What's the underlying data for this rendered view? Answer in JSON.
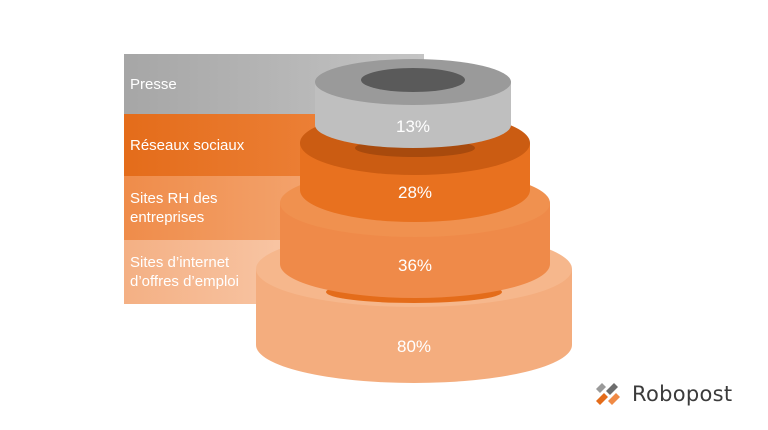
{
  "chart_data": {
    "type": "stacked-ring-pyramid",
    "title": "",
    "categories": [
      "Presse",
      "Réseaux sociaux",
      "Sites RH des entreprises",
      "Sites d’internet d’offres d’emploi"
    ],
    "values": [
      13,
      28,
      36,
      80
    ],
    "value_labels": [
      "13%",
      "28%",
      "36%",
      "80%"
    ],
    "unit": "%",
    "colors": [
      "#a6a6a6",
      "#e46c1a",
      "#ef8c4a",
      "#f4b084"
    ]
  },
  "labels": {
    "presse": "Presse",
    "reseaux": "Réseaux sociaux",
    "sites_rh": "Sites RH des entreprises",
    "sites_emploi": "Sites d’internet d’offres d’emploi"
  },
  "logo": {
    "text": "Robopost",
    "icon": "robopost-logo-icon",
    "colors": [
      "#e46c1a",
      "#6d6d6d"
    ]
  }
}
